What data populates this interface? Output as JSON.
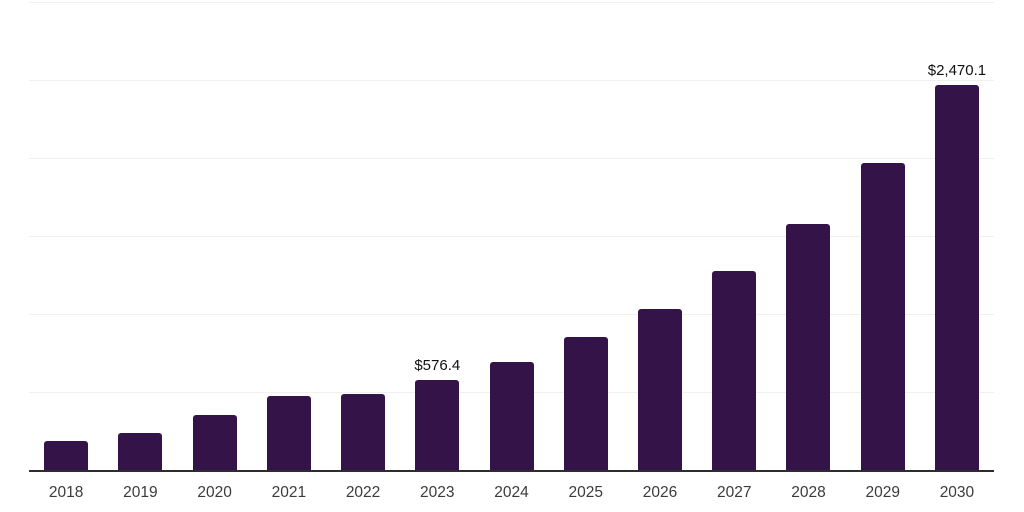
{
  "chart_data": {
    "type": "bar",
    "title": "",
    "xlabel": "",
    "ylabel": "",
    "categories": [
      "2018",
      "2019",
      "2020",
      "2021",
      "2022",
      "2023",
      "2024",
      "2025",
      "2026",
      "2027",
      "2028",
      "2029",
      "2030"
    ],
    "values": [
      185,
      235,
      355,
      475,
      485,
      576.4,
      690,
      850,
      1035,
      1275,
      1580,
      1970,
      2470.1
    ],
    "data_labels": {
      "2023": "$576.4",
      "2030": "$2,470.1"
    },
    "ylim": [
      0,
      3000
    ],
    "gridline_step": 500,
    "grid": "horizontal-only",
    "y_axis_tick_labels_visible": false,
    "legend_position": "none",
    "colors": {
      "bar": "#341348",
      "axis_line": "#2d2d2d",
      "gridline": "#f0f0f0",
      "value_label": "#101010",
      "tick_label": "#3b3b3b",
      "background": "#ffffff"
    }
  }
}
